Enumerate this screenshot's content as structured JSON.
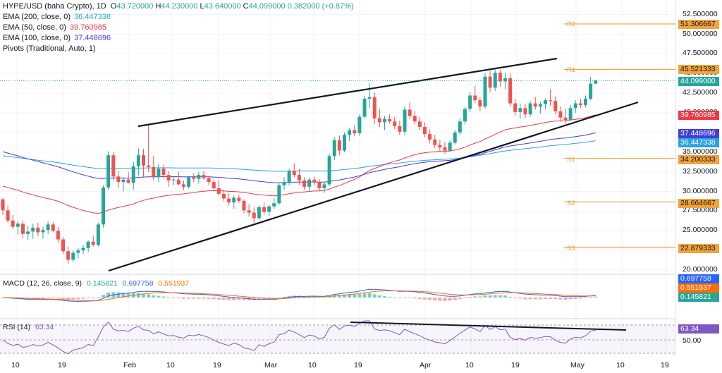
{
  "header": {
    "symbol_line": "HYPE/USD (baha Crypto), 1D",
    "ohlc": {
      "open_label": "O",
      "open": "43.720000",
      "high_label": "H",
      "high": "44.230000",
      "low_label": "L",
      "low": "43.640000",
      "close_label": "C",
      "close": "44.099000",
      "change": "0.382000 (+0.87%)"
    }
  },
  "indicators": {
    "ema200": {
      "label": "EMA (200, close, 0)",
      "value": "36.447338",
      "color": "#29a3e0"
    },
    "ema50": {
      "label": "EMA (50, close, 0)",
      "value": "39.760985",
      "color": "#f23645"
    },
    "ema100": {
      "label": "EMA (100, close, 0)",
      "value": "37.448696",
      "color": "#3f3fd8"
    },
    "pivots": {
      "label": "Pivots (Traditional, Auto, 1)"
    }
  },
  "price_axis": {
    "ticks": [
      "52.500000",
      "50.000000",
      "47.500000",
      "45.000000",
      "42.500000",
      "40.000000",
      "37.500000",
      "35.000000",
      "32.500000",
      "30.000000",
      "27.500000",
      "25.000000",
      "22.500000",
      "20.000000"
    ],
    "last_price": "44.099000",
    "badges": {
      "r2": "51.306667",
      "r1": "45.521333",
      "last": "44.099000",
      "ema50": "39.760985",
      "ema100": "37.448696",
      "ema200": "36.447338",
      "s1": "34.200333",
      "s2": "28.664667",
      "s3": "22.879333"
    }
  },
  "pivot_levels": [
    {
      "name": "R2",
      "value": 51.306667
    },
    {
      "name": "R1",
      "value": 45.521333
    },
    {
      "name": "S1",
      "value": 34.200333
    },
    {
      "name": "S2",
      "value": 28.664667
    },
    {
      "name": "S3",
      "value": 22.879333
    }
  ],
  "macd": {
    "label": "MACD (12, 26, close, 9)",
    "v1": "0.145821",
    "v2": "0.697758",
    "v3": "0.551937",
    "badges": [
      "0.697758",
      "0.551937",
      "0.145821"
    ]
  },
  "rsi": {
    "label": "RSI (14)",
    "value": "63.34",
    "badge": "63.34",
    "tick": "50.00"
  },
  "time_axis": [
    "10",
    "19",
    "Feb",
    "10",
    "19",
    "Mar",
    "10",
    "19",
    "Apr",
    "10",
    "19",
    "May",
    "10",
    "19"
  ],
  "colors": {
    "up": "#26a69a",
    "down": "#ef5350",
    "pivot": "#f2a33a",
    "ema200": "#29a3e0",
    "ema50": "#f23645",
    "ema100": "#3f3fd8",
    "macd": "#2962ff",
    "signal": "#ff6d00",
    "rsi": "#7e57c2"
  },
  "chart_data": {
    "type": "candlestick",
    "title": "HYPE/USD (baha Crypto), 1D",
    "ylim": [
      19.5,
      53.5
    ],
    "note_pattern": "rising wedge",
    "candles": [
      [
        29.0,
        29.2,
        27.0,
        27.6
      ],
      [
        27.6,
        28.2,
        26.0,
        26.3
      ],
      [
        26.3,
        27.0,
        25.2,
        25.5
      ],
      [
        25.5,
        26.2,
        24.5,
        25.9
      ],
      [
        25.9,
        26.3,
        24.0,
        24.6
      ],
      [
        24.6,
        25.6,
        23.8,
        24.9
      ],
      [
        24.9,
        25.9,
        24.0,
        25.4
      ],
      [
        25.4,
        26.0,
        24.3,
        24.8
      ],
      [
        24.8,
        25.5,
        24.0,
        25.1
      ],
      [
        25.1,
        26.2,
        24.6,
        25.8
      ],
      [
        25.8,
        26.1,
        24.8,
        25.0
      ],
      [
        25.0,
        25.5,
        23.5,
        23.9
      ],
      [
        23.9,
        24.2,
        22.0,
        22.4
      ],
      [
        22.4,
        23.0,
        20.8,
        21.3
      ],
      [
        21.3,
        22.5,
        21.0,
        22.2
      ],
      [
        22.2,
        22.8,
        21.5,
        22.5
      ],
      [
        22.5,
        23.2,
        22.0,
        22.8
      ],
      [
        22.8,
        23.8,
        22.3,
        23.6
      ],
      [
        23.6,
        24.4,
        23.0,
        23.2
      ],
      [
        23.2,
        26.0,
        23.0,
        25.8
      ],
      [
        25.8,
        30.8,
        25.4,
        30.5
      ],
      [
        30.5,
        35.1,
        30.2,
        34.6
      ],
      [
        34.6,
        35.0,
        31.4,
        31.9
      ],
      [
        31.9,
        32.6,
        30.4,
        31.2
      ],
      [
        31.2,
        31.8,
        30.0,
        31.5
      ],
      [
        31.5,
        32.5,
        31.0,
        31.1
      ],
      [
        31.1,
        33.8,
        30.2,
        33.2
      ],
      [
        33.2,
        35.5,
        32.0,
        34.6
      ],
      [
        34.6,
        35.4,
        31.9,
        33.3
      ],
      [
        33.3,
        38.5,
        32.5,
        33.1
      ],
      [
        33.1,
        34.5,
        31.5,
        31.8
      ],
      [
        31.8,
        33.5,
        31.2,
        32.9
      ],
      [
        32.9,
        33.4,
        31.6,
        32.1
      ],
      [
        32.1,
        32.6,
        30.6,
        31.4
      ],
      [
        31.4,
        32.0,
        30.8,
        31.5
      ],
      [
        31.5,
        32.5,
        30.8,
        30.9
      ],
      [
        30.9,
        31.4,
        30.2,
        30.6
      ],
      [
        30.6,
        32.0,
        30.4,
        31.8
      ],
      [
        31.8,
        32.3,
        31.2,
        31.6
      ],
      [
        31.6,
        32.5,
        31.0,
        32.1
      ],
      [
        32.1,
        32.6,
        31.5,
        31.7
      ],
      [
        31.7,
        32.0,
        30.8,
        31.2
      ],
      [
        31.2,
        31.5,
        30.2,
        30.4
      ],
      [
        30.4,
        31.5,
        29.5,
        29.7
      ],
      [
        29.7,
        30.2,
        28.8,
        29.1
      ],
      [
        29.1,
        29.8,
        28.2,
        28.6
      ],
      [
        28.6,
        29.5,
        27.8,
        29.2
      ],
      [
        29.2,
        29.6,
        28.5,
        28.8
      ],
      [
        28.8,
        29.0,
        27.2,
        27.6
      ],
      [
        27.6,
        28.4,
        26.8,
        27.3
      ],
      [
        27.3,
        28.0,
        26.0,
        26.6
      ],
      [
        26.6,
        28.2,
        26.4,
        28.0
      ],
      [
        28.0,
        28.6,
        27.0,
        27.4
      ],
      [
        27.4,
        28.3,
        26.9,
        28.1
      ],
      [
        28.1,
        29.2,
        27.8,
        28.5
      ],
      [
        28.5,
        31.0,
        28.3,
        30.8
      ],
      [
        30.8,
        31.8,
        30.2,
        31.2
      ],
      [
        31.2,
        32.9,
        30.8,
        32.6
      ],
      [
        32.6,
        33.6,
        31.8,
        32.1
      ],
      [
        32.1,
        32.9,
        30.8,
        31.4
      ],
      [
        31.4,
        31.8,
        30.2,
        30.6
      ],
      [
        30.6,
        31.8,
        30.0,
        31.5
      ],
      [
        31.5,
        31.9,
        30.8,
        31.2
      ],
      [
        31.2,
        31.6,
        30.0,
        30.4
      ],
      [
        30.4,
        31.2,
        29.8,
        30.9
      ],
      [
        30.9,
        34.8,
        30.7,
        34.5
      ],
      [
        34.5,
        36.9,
        34.0,
        36.5
      ],
      [
        36.5,
        37.1,
        34.6,
        35.2
      ],
      [
        35.2,
        37.5,
        35.0,
        37.2
      ],
      [
        37.2,
        38.1,
        36.4,
        37.8
      ],
      [
        37.8,
        38.4,
        37.0,
        37.4
      ],
      [
        37.4,
        39.8,
        37.1,
        39.5
      ],
      [
        39.5,
        42.2,
        39.3,
        41.8
      ],
      [
        41.8,
        43.8,
        40.6,
        42.0
      ],
      [
        42.0,
        42.6,
        38.6,
        39.3
      ],
      [
        39.3,
        40.5,
        38.2,
        38.8
      ],
      [
        38.8,
        39.6,
        37.8,
        39.2
      ],
      [
        39.2,
        39.8,
        38.6,
        38.9
      ],
      [
        38.9,
        39.5,
        37.9,
        38.3
      ],
      [
        38.3,
        39.0,
        37.2,
        37.6
      ],
      [
        37.6,
        40.8,
        37.2,
        40.4
      ],
      [
        40.4,
        41.3,
        39.2,
        39.6
      ],
      [
        39.6,
        40.2,
        38.5,
        38.9
      ],
      [
        38.9,
        39.5,
        37.8,
        38.2
      ],
      [
        38.2,
        38.8,
        36.9,
        37.3
      ],
      [
        37.3,
        37.9,
        36.1,
        36.6
      ],
      [
        36.6,
        37.2,
        35.5,
        35.9
      ],
      [
        35.9,
        36.6,
        35.1,
        35.6
      ],
      [
        35.6,
        36.3,
        34.8,
        35.2
      ],
      [
        35.2,
        36.5,
        35.0,
        36.2
      ],
      [
        36.2,
        37.8,
        36.0,
        37.5
      ],
      [
        37.5,
        39.3,
        37.2,
        38.9
      ],
      [
        38.9,
        40.8,
        38.5,
        40.5
      ],
      [
        40.5,
        42.6,
        40.1,
        42.2
      ],
      [
        42.2,
        43.4,
        41.2,
        41.6
      ],
      [
        41.6,
        42.0,
        40.2,
        40.8
      ],
      [
        40.8,
        45.0,
        40.5,
        44.6
      ],
      [
        44.6,
        45.3,
        42.6,
        43.2
      ],
      [
        43.2,
        45.6,
        42.8,
        45.1
      ],
      [
        45.1,
        45.5,
        43.3,
        44.0
      ],
      [
        44.0,
        45.1,
        43.0,
        44.4
      ],
      [
        44.4,
        45.0,
        40.8,
        41.2
      ],
      [
        41.2,
        41.8,
        39.6,
        40.1
      ],
      [
        40.1,
        41.2,
        39.2,
        40.6
      ],
      [
        40.6,
        41.1,
        39.3,
        39.8
      ],
      [
        39.8,
        41.5,
        39.5,
        41.2
      ],
      [
        41.2,
        42.0,
        40.4,
        40.8
      ],
      [
        40.8,
        41.4,
        39.9,
        41.1
      ],
      [
        41.1,
        41.8,
        40.5,
        41.6
      ],
      [
        41.6,
        43.0,
        40.9,
        41.5
      ],
      [
        41.5,
        42.1,
        39.8,
        40.2
      ],
      [
        40.2,
        40.8,
        38.9,
        39.4
      ],
      [
        39.4,
        40.5,
        38.6,
        39.1
      ],
      [
        39.1,
        41.0,
        39.0,
        40.6
      ],
      [
        40.6,
        41.6,
        40.0,
        41.2
      ],
      [
        41.2,
        41.8,
        40.6,
        41.0
      ],
      [
        41.0,
        42.2,
        40.7,
        41.8
      ],
      [
        41.8,
        44.6,
        41.6,
        43.7
      ],
      [
        43.72,
        44.23,
        43.64,
        44.099
      ]
    ],
    "series": [
      {
        "name": "EMA (200, close, 0)",
        "last": 36.447338
      },
      {
        "name": "EMA (50, close, 0)",
        "last": 39.760985
      },
      {
        "name": "EMA (100, close, 0)",
        "last": 37.448696
      }
    ]
  }
}
